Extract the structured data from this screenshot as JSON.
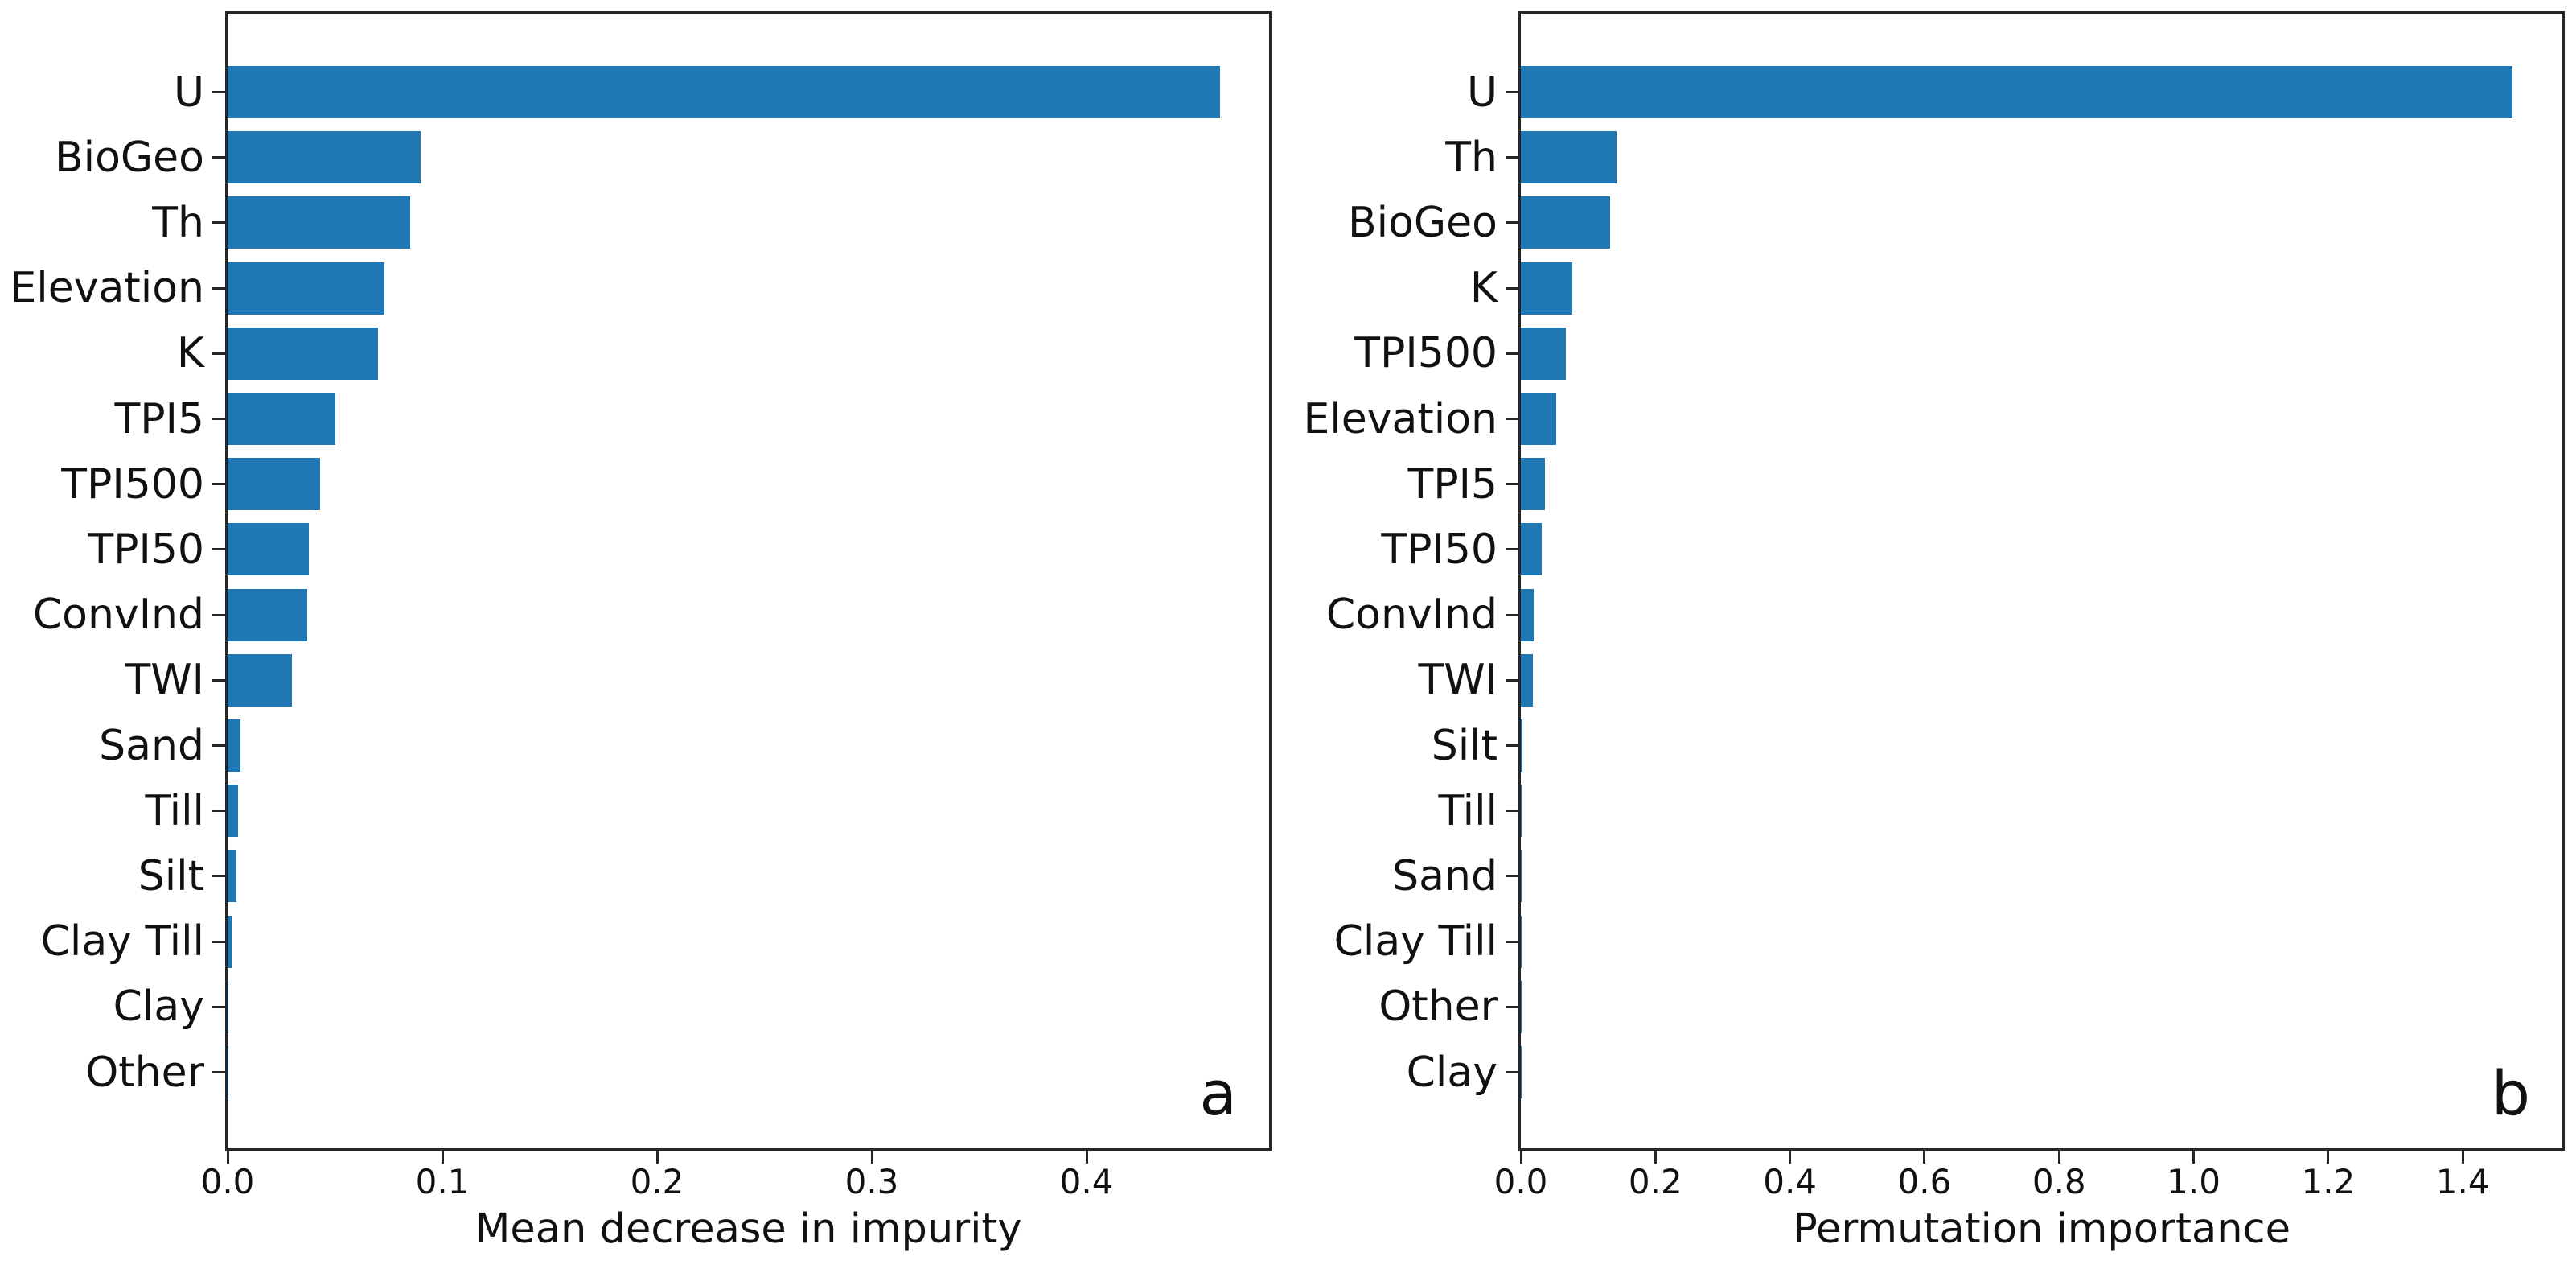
{
  "style": {
    "bar_color": "#1f77b4",
    "spine_color": "#262626",
    "background": "#ffffff"
  },
  "chart_data": [
    {
      "type": "bar",
      "orientation": "horizontal",
      "letter": "a",
      "title": "",
      "xlabel": "Mean decrease in impurity",
      "ylabel": "",
      "grid": false,
      "legend": null,
      "xlim": [
        0,
        0.485
      ],
      "xticks": [
        0.0,
        0.1,
        0.2,
        0.3,
        0.4
      ],
      "xtick_labels": [
        "0.0",
        "0.1",
        "0.2",
        "0.3",
        "0.4"
      ],
      "categories": [
        "U",
        "BioGeo",
        "Th",
        "Elevation",
        "K",
        "TPI5",
        "TPI500",
        "TPI50",
        "ConvInd",
        "TWI",
        "Sand",
        "Till",
        "Silt",
        "Clay Till",
        "Clay",
        "Other"
      ],
      "values": [
        0.462,
        0.09,
        0.085,
        0.073,
        0.07,
        0.05,
        0.043,
        0.038,
        0.037,
        0.03,
        0.006,
        0.005,
        0.004,
        0.002,
        0.0004,
        0.0002
      ]
    },
    {
      "type": "bar",
      "orientation": "horizontal",
      "letter": "b",
      "title": "",
      "xlabel": "Permutation importance",
      "ylabel": "",
      "grid": false,
      "legend": null,
      "xlim": [
        0,
        1.548
      ],
      "xticks": [
        0.0,
        0.2,
        0.4,
        0.6,
        0.8,
        1.0,
        1.2,
        1.4
      ],
      "xtick_labels": [
        "0.0",
        "0.2",
        "0.4",
        "0.6",
        "0.8",
        "1.0",
        "1.2",
        "1.4"
      ],
      "categories": [
        "U",
        "Th",
        "BioGeo",
        "K",
        "TPI500",
        "Elevation",
        "TPI5",
        "TPI50",
        "ConvInd",
        "TWI",
        "Silt",
        "Till",
        "Sand",
        "Clay Till",
        "Other",
        "Clay"
      ],
      "values": [
        1.474,
        0.142,
        0.133,
        0.077,
        0.067,
        0.053,
        0.036,
        0.031,
        0.019,
        0.018,
        0.002,
        0.0015,
        0.001,
        0.0006,
        0.0002,
        0.0001
      ]
    }
  ]
}
